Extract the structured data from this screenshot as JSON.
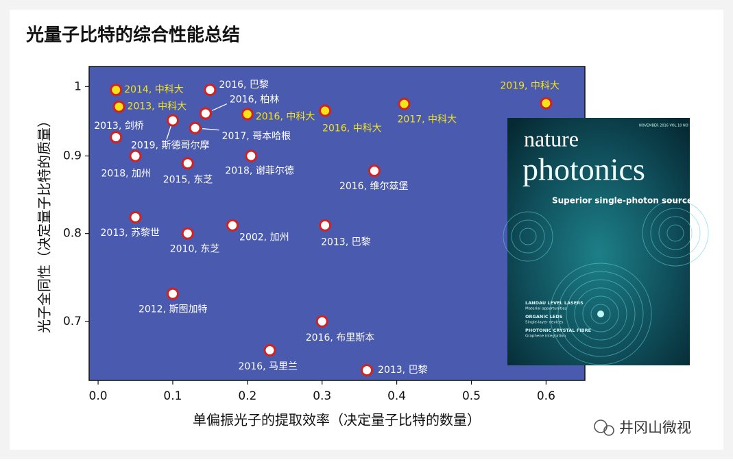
{
  "chart_data": {
    "type": "scatter",
    "title": "光量子比特的综合性能总结",
    "x_label": "单偏振光子的提取效率（决定量子比特的数量）",
    "y_label": "光子全同性（决定量子比特的质量）",
    "xlim": [
      -0.012,
      0.652
    ],
    "ylim": [
      0.64,
      1.031
    ],
    "y_scale": "log",
    "grid": false,
    "xticks": [
      {
        "value": 0,
        "label": "0.0"
      },
      0.1,
      0.2,
      0.3,
      0.4,
      0.5,
      0.6
    ],
    "yticks": [
      0.7,
      0.8,
      0.9,
      1
    ],
    "background": "#4a5aae",
    "marker_edge_color": "#d2221f",
    "points": [
      {
        "x": 0.024,
        "y": 0.995,
        "label": "2014, 中科大",
        "color": "#f4e41a"
      },
      {
        "x": 0.028,
        "y": 0.97,
        "label": "2013, 中科大",
        "color": "#f4e41a"
      },
      {
        "x": 0.15,
        "y": 0.995,
        "label": "2016, 巴黎",
        "color": "#ffffff"
      },
      {
        "x": 0.144,
        "y": 0.96,
        "label": "2016, 柏林",
        "color": "#ffffff"
      },
      {
        "x": 0.2,
        "y": 0.959,
        "label": "2016, 中科大",
        "color": "#f4e41a"
      },
      {
        "x": 0.304,
        "y": 0.964,
        "label": "2016, 中科大",
        "color": "#f4e41a"
      },
      {
        "x": 0.41,
        "y": 0.974,
        "label": "2017, 中科大",
        "color": "#f4e41a"
      },
      {
        "x": 0.6,
        "y": 0.975,
        "label": "2019, 中科大",
        "color": "#f4e41a"
      },
      {
        "x": 0.024,
        "y": 0.926,
        "label": "2013, 剑桥",
        "color": "#ffffff"
      },
      {
        "x": 0.1,
        "y": 0.95,
        "label": "2019, 斯德哥尔摩",
        "color": "#ffffff"
      },
      {
        "x": 0.13,
        "y": 0.939,
        "label": "2017, 哥本哈根",
        "color": "#ffffff"
      },
      {
        "x": 0.05,
        "y": 0.9,
        "label": "2018, 加州",
        "color": "#ffffff"
      },
      {
        "x": 0.12,
        "y": 0.89,
        "label": "2015, 东芝",
        "color": "#ffffff"
      },
      {
        "x": 0.205,
        "y": 0.9,
        "label": "2018, 谢菲尔德",
        "color": "#ffffff"
      },
      {
        "x": 0.37,
        "y": 0.88,
        "label": "2016, 维尔兹堡",
        "color": "#ffffff"
      },
      {
        "x": 0.05,
        "y": 0.82,
        "label": "2013, 苏黎世",
        "color": "#ffffff"
      },
      {
        "x": 0.12,
        "y": 0.8,
        "label": "2010, 东芝",
        "color": "#ffffff"
      },
      {
        "x": 0.18,
        "y": 0.81,
        "label": "2002, 加州",
        "color": "#ffffff"
      },
      {
        "x": 0.304,
        "y": 0.81,
        "label": "2013, 巴黎",
        "color": "#ffffff"
      },
      {
        "x": 0.1,
        "y": 0.73,
        "label": "2012, 斯图加特",
        "color": "#ffffff"
      },
      {
        "x": 0.3,
        "y": 0.7,
        "label": "2016, 布里斯本",
        "color": "#ffffff"
      },
      {
        "x": 0.23,
        "y": 0.67,
        "label": "2016, 马里兰",
        "color": "#ffffff"
      },
      {
        "x": 0.36,
        "y": 0.65,
        "label": "2013, 巴黎",
        "color": "#ffffff"
      }
    ]
  },
  "cover": {
    "date": "NOVEMBER 2016 VOL 10 NO 11",
    "title1": "nature",
    "title2": "photonics",
    "headline": "Superior single-photon sources",
    "items": [
      "LANDAU LEVEL LASERS",
      "Material opportunities",
      "ORGANIC LEDS",
      "Single-layer devices",
      "PHOTONIC CRYSTAL FIBRE",
      "Graphene integration"
    ]
  },
  "watermark": "井冈山微视"
}
